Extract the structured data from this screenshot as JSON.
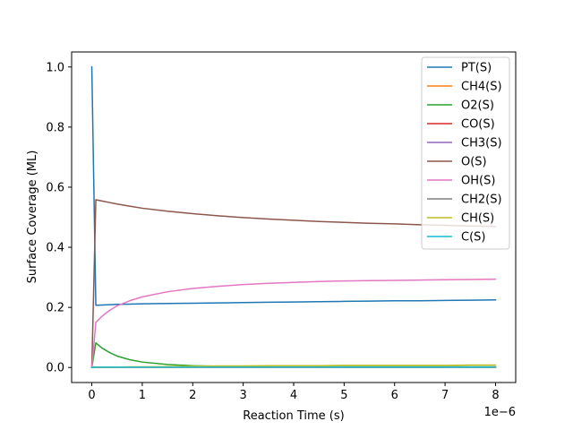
{
  "chart_data": {
    "type": "line",
    "xlabel": "Reaction Time (s)",
    "ylabel": "Surface Coverage (ML)",
    "x_offset_text": "1e−6",
    "x_ticks": [
      0,
      1,
      2,
      3,
      4,
      5,
      6,
      7,
      8
    ],
    "y_ticks": [
      0.0,
      0.2,
      0.4,
      0.6,
      0.8,
      1.0
    ],
    "y_tick_labels": [
      "0.0",
      "0.2",
      "0.4",
      "0.6",
      "0.8",
      "1.0"
    ],
    "xlim": [
      -0.4,
      8.4
    ],
    "ylim": [
      -0.05,
      1.05
    ],
    "grid": false,
    "legend_position": "top-right",
    "x": [
      0,
      0.08,
      0.2,
      0.35,
      0.5,
      0.75,
      1,
      1.5,
      2,
      2.5,
      3,
      3.5,
      4,
      4.5,
      5,
      5.5,
      6,
      6.5,
      7,
      7.5,
      8
    ],
    "series": [
      {
        "name": "PT(S)",
        "color": "#1f77b4",
        "values": [
          1.0,
          0.207,
          0.208,
          0.209,
          0.21,
          0.211,
          0.212,
          0.213,
          0.214,
          0.215,
          0.216,
          0.217,
          0.218,
          0.219,
          0.22,
          0.221,
          0.222,
          0.222,
          0.223,
          0.224,
          0.225
        ]
      },
      {
        "name": "CH4(S)",
        "color": "#ff7f0e",
        "values": [
          0,
          0.001,
          0.001,
          0.001,
          0.001,
          0.001,
          0.001,
          0.001,
          0.001,
          0.001,
          0.001,
          0.001,
          0.001,
          0.001,
          0.001,
          0.001,
          0.001,
          0.001,
          0.001,
          0.001,
          0.001
        ]
      },
      {
        "name": "O2(S)",
        "color": "#2ca02c",
        "values": [
          0,
          0.082,
          0.065,
          0.05,
          0.038,
          0.026,
          0.018,
          0.01,
          0.006,
          0.004,
          0.003,
          0.002,
          0.002,
          0.002,
          0.002,
          0.002,
          0.002,
          0.002,
          0.002,
          0.002,
          0.002
        ]
      },
      {
        "name": "CO(S)",
        "color": "#d62728",
        "values": [
          0,
          0.001,
          0.001,
          0.001,
          0.001,
          0.001,
          0.001,
          0.001,
          0.001,
          0.001,
          0.001,
          0.001,
          0.001,
          0.001,
          0.001,
          0.001,
          0.001,
          0.001,
          0.001,
          0.001,
          0.001
        ]
      },
      {
        "name": "CH3(S)",
        "color": "#9467bd",
        "values": [
          0,
          0.001,
          0.001,
          0.001,
          0.001,
          0.001,
          0.001,
          0.001,
          0.001,
          0.001,
          0.001,
          0.001,
          0.001,
          0.001,
          0.001,
          0.001,
          0.001,
          0.001,
          0.001,
          0.001,
          0.001
        ]
      },
      {
        "name": "O(S)",
        "color": "#8c564b",
        "values": [
          0,
          0.558,
          0.554,
          0.549,
          0.544,
          0.537,
          0.53,
          0.52,
          0.512,
          0.505,
          0.499,
          0.494,
          0.49,
          0.486,
          0.483,
          0.48,
          0.478,
          0.475,
          0.473,
          0.471,
          0.469
        ]
      },
      {
        "name": "OH(S)",
        "color": "#e377c2",
        "values": [
          0,
          0.15,
          0.17,
          0.19,
          0.205,
          0.222,
          0.235,
          0.252,
          0.263,
          0.27,
          0.276,
          0.28,
          0.283,
          0.286,
          0.288,
          0.289,
          0.29,
          0.291,
          0.292,
          0.293,
          0.294
        ]
      },
      {
        "name": "CH2(S)",
        "color": "#7f7f7f",
        "values": [
          0,
          0.001,
          0.001,
          0.001,
          0.001,
          0.001,
          0.001,
          0.001,
          0.001,
          0.001,
          0.001,
          0.001,
          0.001,
          0.001,
          0.001,
          0.001,
          0.001,
          0.001,
          0.001,
          0.001,
          0.001
        ]
      },
      {
        "name": "CH(S)",
        "color": "#bcbd22",
        "values": [
          0,
          0.001,
          0.001,
          0.001,
          0.001,
          0.002,
          0.002,
          0.003,
          0.004,
          0.005,
          0.005,
          0.006,
          0.006,
          0.006,
          0.007,
          0.007,
          0.007,
          0.007,
          0.007,
          0.008,
          0.008
        ]
      },
      {
        "name": "C(S)",
        "color": "#17becf",
        "values": [
          0,
          0.001,
          0.001,
          0.001,
          0.001,
          0.001,
          0.001,
          0.001,
          0.001,
          0.001,
          0.001,
          0.001,
          0.001,
          0.001,
          0.001,
          0.001,
          0.001,
          0.001,
          0.001,
          0.001,
          0.001
        ]
      }
    ]
  }
}
